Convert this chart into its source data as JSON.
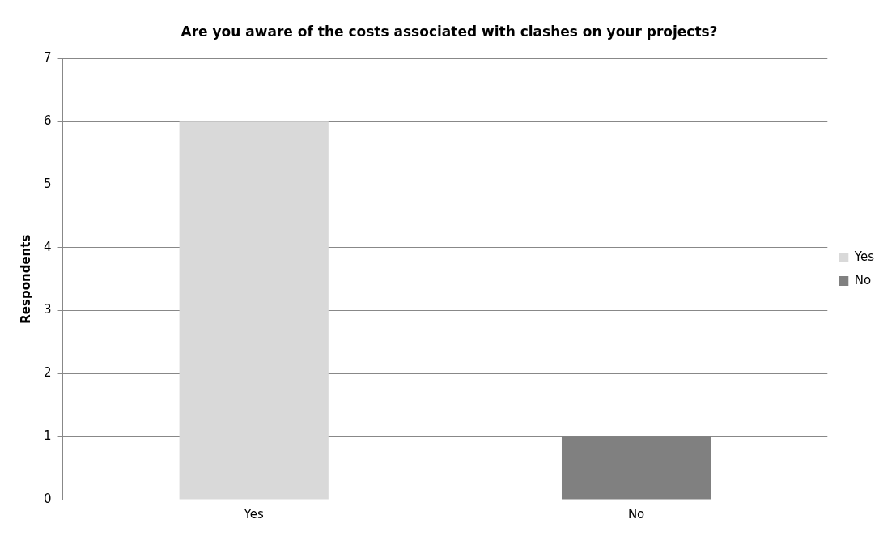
{
  "chart_data": {
    "type": "bar",
    "title": "Are you aware of the costs associated with clashes on your projects?",
    "ylabel": "Respondents",
    "categories": [
      "Yes",
      "No"
    ],
    "series": [
      {
        "name": "Yes",
        "color": "#d9d9d9",
        "values": [
          6,
          null
        ]
      },
      {
        "name": "No",
        "color": "#808080",
        "values": [
          null,
          1
        ]
      }
    ],
    "ylim": [
      0,
      7
    ],
    "yticks": [
      0,
      1,
      2,
      3,
      4,
      5,
      6,
      7
    ],
    "grid": "y",
    "legend": "right"
  }
}
